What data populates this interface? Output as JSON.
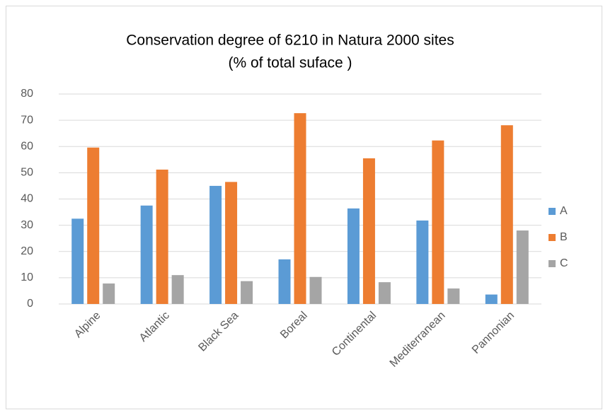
{
  "chart_data": {
    "type": "bar",
    "title": [
      "Conservation degree of 6210 in Natura 2000 sites",
      "(% of total suface )"
    ],
    "categories": [
      "Alpine",
      "Atlantic",
      "Black Sea",
      "Boreal",
      "Continental",
      "Mediterranean",
      "Pannonian"
    ],
    "series": [
      {
        "name": "A",
        "color": "#5b9bd5",
        "values": [
          32.5,
          37.5,
          45,
          17,
          36.4,
          31.8,
          3.6
        ]
      },
      {
        "name": "B",
        "color": "#ed7d31",
        "values": [
          59.6,
          51.2,
          46.5,
          72.7,
          55.5,
          62.3,
          68.1
        ]
      },
      {
        "name": "C",
        "color": "#a5a5a5",
        "values": [
          7.8,
          11,
          8.7,
          10.3,
          8.3,
          5.9,
          28
        ]
      }
    ],
    "ylim": [
      0,
      80
    ],
    "yticks": [
      0,
      10,
      20,
      30,
      40,
      50,
      60,
      70,
      80
    ],
    "grid": true,
    "legend": "right"
  }
}
